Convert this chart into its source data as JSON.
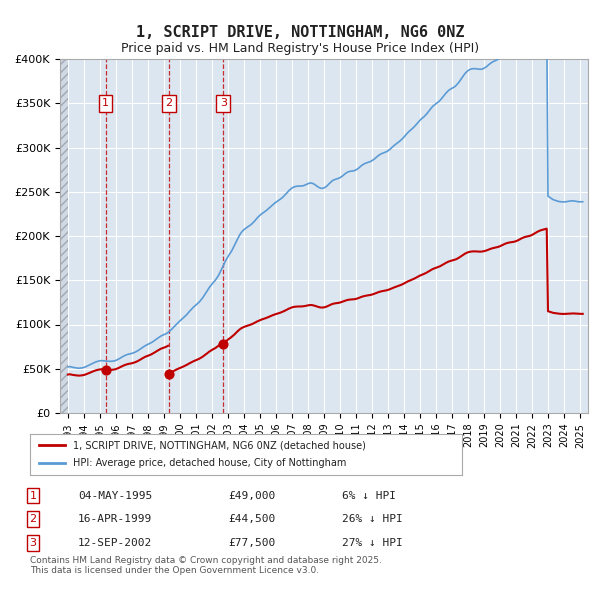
{
  "title": "1, SCRIPT DRIVE, NOTTINGHAM, NG6 0NZ",
  "subtitle": "Price paid vs. HM Land Registry's House Price Index (HPI)",
  "ylabel": "",
  "xlabel": "",
  "ylim": [
    0,
    400000
  ],
  "xlim_start": 1993.0,
  "xlim_end": 2025.5,
  "background_color": "#ffffff",
  "plot_bg_color": "#dce6f0",
  "grid_color": "#ffffff",
  "hatch_color": "#c0c0c8",
  "transactions": [
    {
      "num": 1,
      "date": "04-MAY-1995",
      "price": 49000,
      "year": 1995.35,
      "hpi_diff": "6% ↓ HPI"
    },
    {
      "num": 2,
      "date": "16-APR-1999",
      "price": 44500,
      "year": 1999.29,
      "hpi_diff": "26% ↓ HPI"
    },
    {
      "num": 3,
      "date": "12-SEP-2002",
      "price": 77500,
      "year": 2002.7,
      "hpi_diff": "27% ↓ HPI"
    }
  ],
  "hpi_line_color": "#5b9bd5",
  "price_line_color": "#c00000",
  "legend_label_price": "1, SCRIPT DRIVE, NOTTINGHAM, NG6 0NZ (detached house)",
  "legend_label_hpi": "HPI: Average price, detached house, City of Nottingham",
  "footer": "Contains HM Land Registry data © Crown copyright and database right 2025.\nThis data is licensed under the Open Government Licence v3.0.",
  "hpi_years": [
    1993.0,
    1993.08,
    1993.17,
    1993.25,
    1993.33,
    1993.42,
    1993.5,
    1993.58,
    1993.67,
    1993.75,
    1993.83,
    1993.92,
    1994.0,
    1994.08,
    1994.17,
    1994.25,
    1994.33,
    1994.42,
    1994.5,
    1994.58,
    1994.67,
    1994.75,
    1994.83,
    1994.92,
    1995.0,
    1995.08,
    1995.17,
    1995.25,
    1995.33,
    1995.42,
    1995.5,
    1995.58,
    1995.67,
    1995.75,
    1995.83,
    1995.92,
    1996.0,
    1996.08,
    1996.17,
    1996.25,
    1996.33,
    1996.42,
    1996.5,
    1996.58,
    1996.67,
    1996.75,
    1996.83,
    1996.92,
    1997.0,
    1997.08,
    1997.17,
    1997.25,
    1997.33,
    1997.42,
    1997.5,
    1997.58,
    1997.67,
    1997.75,
    1997.83,
    1997.92,
    1998.0,
    1998.08,
    1998.17,
    1998.25,
    1998.33,
    1998.42,
    1998.5,
    1998.58,
    1998.67,
    1998.75,
    1998.83,
    1998.92,
    1999.0,
    1999.08,
    1999.17,
    1999.25,
    1999.33,
    1999.42,
    1999.5,
    1999.58,
    1999.67,
    1999.75,
    1999.83,
    1999.92,
    2000.0,
    2000.08,
    2000.17,
    2000.25,
    2000.33,
    2000.42,
    2000.5,
    2000.58,
    2000.67,
    2000.75,
    2000.83,
    2000.92,
    2001.0,
    2001.08,
    2001.17,
    2001.25,
    2001.33,
    2001.42,
    2001.5,
    2001.58,
    2001.67,
    2001.75,
    2001.83,
    2001.92,
    2002.0,
    2002.08,
    2002.17,
    2002.25,
    2002.33,
    2002.42,
    2002.5,
    2002.58,
    2002.67,
    2002.75,
    2002.83,
    2002.92,
    2003.0,
    2003.08,
    2003.17,
    2003.25,
    2003.33,
    2003.42,
    2003.5,
    2003.58,
    2003.67,
    2003.75,
    2003.83,
    2003.92,
    2004.0,
    2004.08,
    2004.17,
    2004.25,
    2004.33,
    2004.42,
    2004.5,
    2004.58,
    2004.67,
    2004.75,
    2004.83,
    2004.92,
    2005.0,
    2005.08,
    2005.17,
    2005.25,
    2005.33,
    2005.42,
    2005.5,
    2005.58,
    2005.67,
    2005.75,
    2005.83,
    2005.92,
    2006.0,
    2006.08,
    2006.17,
    2006.25,
    2006.33,
    2006.42,
    2006.5,
    2006.58,
    2006.67,
    2006.75,
    2006.83,
    2006.92,
    2007.0,
    2007.08,
    2007.17,
    2007.25,
    2007.33,
    2007.42,
    2007.5,
    2007.58,
    2007.67,
    2007.75,
    2007.83,
    2007.92,
    2008.0,
    2008.08,
    2008.17,
    2008.25,
    2008.33,
    2008.42,
    2008.5,
    2008.58,
    2008.67,
    2008.75,
    2008.83,
    2008.92,
    2009.0,
    2009.08,
    2009.17,
    2009.25,
    2009.33,
    2009.42,
    2009.5,
    2009.58,
    2009.67,
    2009.75,
    2009.83,
    2009.92,
    2010.0,
    2010.08,
    2010.17,
    2010.25,
    2010.33,
    2010.42,
    2010.5,
    2010.58,
    2010.67,
    2010.75,
    2010.83,
    2010.92,
    2011.0,
    2011.08,
    2011.17,
    2011.25,
    2011.33,
    2011.42,
    2011.5,
    2011.58,
    2011.67,
    2011.75,
    2011.83,
    2011.92,
    2012.0,
    2012.08,
    2012.17,
    2012.25,
    2012.33,
    2012.42,
    2012.5,
    2012.58,
    2012.67,
    2012.75,
    2012.83,
    2012.92,
    2013.0,
    2013.08,
    2013.17,
    2013.25,
    2013.33,
    2013.42,
    2013.5,
    2013.58,
    2013.67,
    2013.75,
    2013.83,
    2013.92,
    2014.0,
    2014.08,
    2014.17,
    2014.25,
    2014.33,
    2014.42,
    2014.5,
    2014.58,
    2014.67,
    2014.75,
    2014.83,
    2014.92,
    2015.0,
    2015.08,
    2015.17,
    2015.25,
    2015.33,
    2015.42,
    2015.5,
    2015.58,
    2015.67,
    2015.75,
    2015.83,
    2015.92,
    2016.0,
    2016.08,
    2016.17,
    2016.25,
    2016.33,
    2016.42,
    2016.5,
    2016.58,
    2016.67,
    2016.75,
    2016.83,
    2016.92,
    2017.0,
    2017.08,
    2017.17,
    2017.25,
    2017.33,
    2017.42,
    2017.5,
    2017.58,
    2017.67,
    2017.75,
    2017.83,
    2017.92,
    2018.0,
    2018.08,
    2018.17,
    2018.25,
    2018.33,
    2018.42,
    2018.5,
    2018.58,
    2018.67,
    2018.75,
    2018.83,
    2018.92,
    2019.0,
    2019.08,
    2019.17,
    2019.25,
    2019.33,
    2019.42,
    2019.5,
    2019.58,
    2019.67,
    2019.75,
    2019.83,
    2019.92,
    2020.0,
    2020.08,
    2020.17,
    2020.25,
    2020.33,
    2020.42,
    2020.5,
    2020.58,
    2020.67,
    2020.75,
    2020.83,
    2020.92,
    2021.0,
    2021.08,
    2021.17,
    2021.25,
    2021.33,
    2021.42,
    2021.5,
    2021.58,
    2021.67,
    2021.75,
    2021.83,
    2021.92,
    2022.0,
    2022.08,
    2022.17,
    2022.25,
    2022.33,
    2022.42,
    2022.5,
    2022.58,
    2022.67,
    2022.75,
    2022.83,
    2022.92,
    2023.0,
    2023.08,
    2023.17,
    2023.25,
    2023.33,
    2023.42,
    2023.5,
    2023.58,
    2023.67,
    2023.75,
    2023.83,
    2023.92,
    2024.0,
    2024.08,
    2024.17,
    2024.25,
    2024.33,
    2024.42,
    2024.5,
    2024.58,
    2024.67,
    2024.75,
    2024.83,
    2024.92,
    2025.0,
    2025.08,
    2025.17
  ],
  "hpi_values": [
    52000,
    52500,
    52200,
    51800,
    51500,
    51200,
    51000,
    50800,
    50600,
    50700,
    50900,
    51100,
    51500,
    52000,
    52800,
    53500,
    54200,
    55000,
    55800,
    56500,
    57200,
    57800,
    58300,
    58700,
    59000,
    59200,
    59100,
    58900,
    58700,
    58600,
    58500,
    58400,
    58400,
    58500,
    58700,
    59000,
    59500,
    60200,
    61000,
    61900,
    62800,
    63700,
    64500,
    65200,
    65800,
    66300,
    66700,
    67000,
    67400,
    67900,
    68500,
    69200,
    70000,
    71000,
    72000,
    73100,
    74200,
    75200,
    76100,
    76900,
    77500,
    78200,
    79000,
    79900,
    80900,
    82000,
    83100,
    84200,
    85300,
    86300,
    87200,
    87900,
    88500,
    89200,
    90000,
    91000,
    92200,
    93600,
    95100,
    96700,
    98300,
    99900,
    101400,
    102800,
    104100,
    105400,
    106700,
    108100,
    109600,
    111200,
    112900,
    114600,
    116300,
    117900,
    119400,
    120800,
    122100,
    123400,
    124800,
    126400,
    128200,
    130200,
    132400,
    134700,
    137100,
    139500,
    141800,
    143900,
    145800,
    147500,
    149200,
    151100,
    153300,
    155900,
    158800,
    161900,
    165100,
    168400,
    171500,
    174300,
    176800,
    179100,
    181400,
    183900,
    186700,
    189700,
    192900,
    196100,
    199100,
    201800,
    204000,
    205800,
    207200,
    208400,
    209500,
    210500,
    211500,
    212600,
    213900,
    215400,
    217000,
    218800,
    220500,
    222100,
    223500,
    224700,
    225800,
    226900,
    228000,
    229200,
    230500,
    231900,
    233300,
    234700,
    236000,
    237200,
    238200,
    239200,
    240200,
    241200,
    242400,
    243700,
    245200,
    246800,
    248500,
    250100,
    251700,
    253100,
    254200,
    255100,
    255700,
    256100,
    256300,
    256400,
    256400,
    256500,
    256700,
    257100,
    257700,
    258400,
    259100,
    259700,
    259900,
    259700,
    259100,
    258200,
    257100,
    256000,
    255000,
    254300,
    253900,
    253900,
    254300,
    255100,
    256300,
    257700,
    259300,
    260800,
    262100,
    263100,
    263800,
    264300,
    264700,
    265200,
    265900,
    266900,
    268000,
    269300,
    270500,
    271600,
    272400,
    272900,
    273200,
    273400,
    273600,
    274000,
    274700,
    275600,
    276800,
    278100,
    279400,
    280500,
    281400,
    282100,
    282700,
    283200,
    283700,
    284300,
    285100,
    286100,
    287300,
    288600,
    289900,
    291100,
    292100,
    292900,
    293500,
    294100,
    294700,
    295400,
    296300,
    297400,
    298700,
    300100,
    301500,
    302800,
    304000,
    305100,
    306200,
    307400,
    308700,
    310200,
    311900,
    313700,
    315400,
    317000,
    318400,
    319700,
    321000,
    322400,
    324000,
    325700,
    327500,
    329200,
    330800,
    332200,
    333500,
    334800,
    336300,
    338000,
    339900,
    341900,
    343800,
    345600,
    347100,
    348400,
    349500,
    350600,
    351800,
    353200,
    354900,
    356700,
    358700,
    360600,
    362400,
    363900,
    365100,
    366100,
    366900,
    367700,
    368700,
    370000,
    371600,
    373500,
    375600,
    377800,
    380000,
    382100,
    384000,
    385600,
    386900,
    387800,
    388500,
    388900,
    389100,
    389100,
    388900,
    388700,
    388500,
    388400,
    388500,
    388900,
    389500,
    390400,
    391500,
    392800,
    394100,
    395300,
    396300,
    397100,
    397800,
    398500,
    399300,
    400300,
    401500,
    403000,
    404600,
    406200,
    407600,
    408800,
    409700,
    410400,
    410900,
    411400,
    411900,
    412600,
    413600,
    415000,
    416600,
    418400,
    420100,
    421600,
    422900,
    423900,
    424700,
    425400,
    426200,
    427200,
    428600,
    430300,
    432200,
    434200,
    436100,
    437800,
    439100,
    440200,
    441100,
    441900,
    442700,
    443700,
    245000,
    244000,
    243000,
    242000,
    241000,
    240500,
    240000,
    239500,
    239000,
    238800,
    238600,
    238500,
    238500,
    238600,
    238800,
    239100,
    239400,
    239600,
    239700,
    239700,
    239500,
    239200,
    238900,
    238700,
    238600,
    238600,
    238700
  ]
}
